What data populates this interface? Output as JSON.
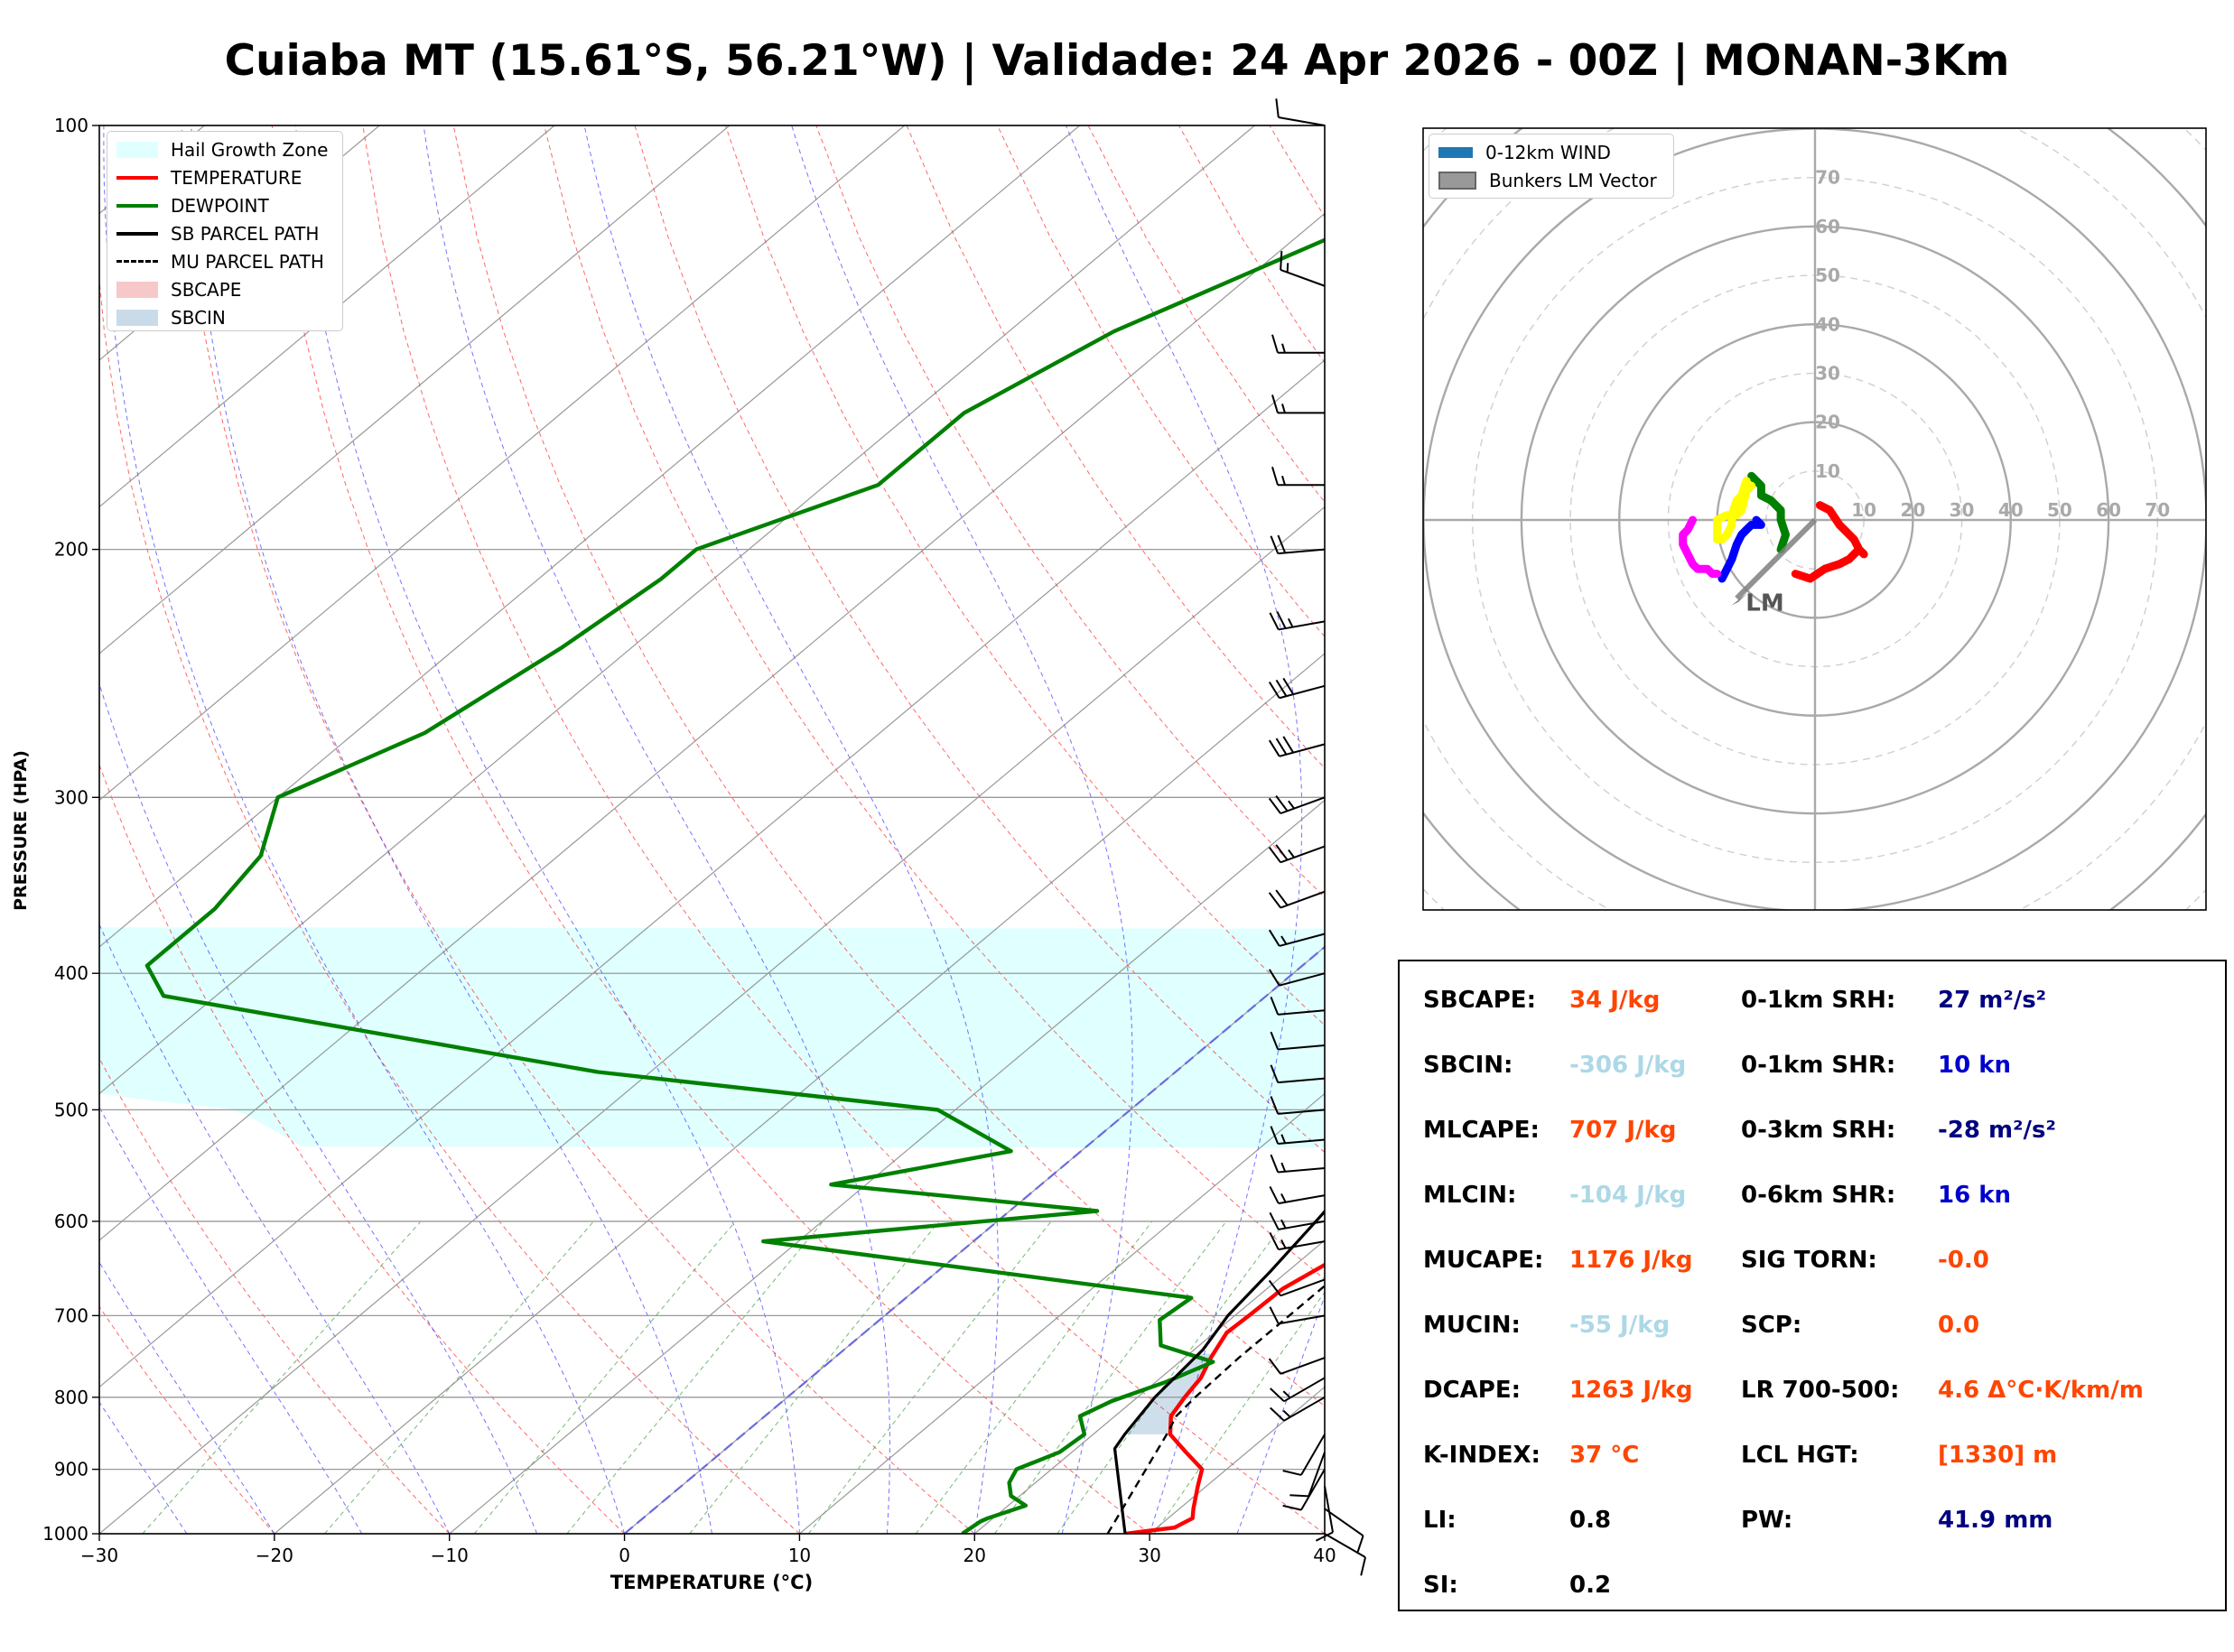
{
  "title": "Cuiaba MT (15.61°S, 56.21°W) | Validade: 24 Apr 2026 - 00Z | MONAN-3Km",
  "skewt": {
    "xlabel": "TEMPERATURE (°C)",
    "ylabel": "PRESSURE (HPA)",
    "x_ticks": [
      "−30",
      "−20",
      "−10",
      "0",
      "10",
      "20",
      "30",
      "40"
    ],
    "y_ticks": [
      "100",
      "200",
      "300",
      "400",
      "500",
      "600",
      "700",
      "800",
      "900",
      "1000"
    ],
    "legend": [
      {
        "label": "Hail Growth Zone",
        "color": "#e0ffff",
        "style": "fill"
      },
      {
        "label": "TEMPERATURE",
        "color": "#ff0000",
        "style": "line"
      },
      {
        "label": "DEWPOINT",
        "color": "#008000",
        "style": "line"
      },
      {
        "label": "SB PARCEL PATH",
        "color": "#000000",
        "style": "line"
      },
      {
        "label": "MU PARCEL PATH",
        "color": "#000000",
        "style": "dash"
      },
      {
        "label": "SBCAPE",
        "color": "#f6c8c8",
        "style": "fill"
      },
      {
        "label": "SBCIN",
        "color": "#c9dbe9",
        "style": "fill"
      }
    ]
  },
  "hodograph": {
    "legend": [
      {
        "label": "0-12km WIND",
        "color": "#1f77b4"
      },
      {
        "label": "Bunkers LM Vector",
        "color": "#999999"
      }
    ],
    "ring_labels": [
      "10",
      "20",
      "30",
      "40",
      "50",
      "60",
      "70"
    ],
    "lm_label": "LM"
  },
  "params": {
    "left": [
      {
        "label": "SBCAPE:",
        "value": "34 J/kg",
        "color": "#ff4500"
      },
      {
        "label": "SBCIN:",
        "value": "-306 J/kg",
        "color": "#add8e6"
      },
      {
        "label": "MLCAPE:",
        "value": "707 J/kg",
        "color": "#ff4500"
      },
      {
        "label": "MLCIN:",
        "value": "-104 J/kg",
        "color": "#add8e6"
      },
      {
        "label": "MUCAPE:",
        "value": "1176 J/kg",
        "color": "#ff4500"
      },
      {
        "label": "MUCIN:",
        "value": "-55 J/kg",
        "color": "#add8e6"
      },
      {
        "label": "DCAPE:",
        "value": "1263 J/kg",
        "color": "#ff4500"
      },
      {
        "label": "K-INDEX:",
        "value": "37 °C",
        "color": "#ff4500"
      },
      {
        "label": "LI:",
        "value": "0.8",
        "color": "#000000"
      },
      {
        "label": "SI:",
        "value": "0.2",
        "color": "#000000"
      }
    ],
    "right": [
      {
        "label": "0-1km SRH:",
        "value": "27 m²/s²",
        "color": "#000080"
      },
      {
        "label": "0-1km SHR:",
        "value": "10 kn",
        "color": "#0000cd"
      },
      {
        "label": "0-3km SRH:",
        "value": "-28 m²/s²",
        "color": "#000080"
      },
      {
        "label": "0-6km SHR:",
        "value": "16 kn",
        "color": "#0000cd"
      },
      {
        "label": "SIG TORN:",
        "value": "-0.0",
        "color": "#ff4500"
      },
      {
        "label": "SCP:",
        "value": "0.0",
        "color": "#ff4500"
      },
      {
        "label": "LR 700-500:",
        "value": "4.6 Δ°C·K/km/m",
        "color": "#ff4500"
      },
      {
        "label": "LCL HGT:",
        "value": "[1330] m",
        "color": "#ff4500"
      },
      {
        "label": "PW:",
        "value": "41.9 mm",
        "color": "#000080"
      }
    ]
  },
  "chart_data": [
    {
      "type": "line",
      "xlabel": "TEMPERATURE (°C)",
      "ylabel": "PRESSURE (HPA)",
      "xlim": [
        -30,
        40
      ],
      "ylim": [
        1000,
        100
      ],
      "yscale": "log",
      "skew_deg_per_decade": 96,
      "grid": true,
      "legend_position": "top-left",
      "series": [
        {
          "name": "TEMPERATURE",
          "color": "#ff0000",
          "points": [
            [
              1000,
              28.6
            ],
            [
              990,
              31
            ],
            [
              975,
              31.4
            ],
            [
              960,
              30.8
            ],
            [
              925,
              29.5
            ],
            [
              900,
              28.6
            ],
            [
              875,
              26.5
            ],
            [
              850,
              24.4
            ],
            [
              825,
              23.2
            ],
            [
              800,
              22.7
            ],
            [
              775,
              22.3
            ],
            [
              750,
              21.5
            ],
            [
              720,
              20.7
            ],
            [
              700,
              20.8
            ],
            [
              670,
              20.9
            ],
            [
              640,
              21.8
            ],
            [
              600,
              21.5
            ],
            [
              565,
              21
            ],
            [
              535,
              19.8
            ],
            [
              505,
              18.4
            ],
            [
              470,
              16.8
            ],
            [
              440,
              15.4
            ],
            [
              405,
              13.6
            ],
            [
              370,
              11.9
            ],
            [
              335,
              9.3
            ],
            [
              300,
              6.4
            ],
            [
              260,
              2.7
            ],
            [
              230,
              -0.3
            ],
            [
              200,
              -3.9
            ],
            [
              180,
              -6.2
            ],
            [
              160,
              -8.2
            ],
            [
              145,
              -9.4
            ],
            [
              130,
              -10.9
            ],
            [
              120,
              -11.7
            ],
            [
              100,
              -14.2
            ]
          ]
        },
        {
          "name": "DEWPOINT",
          "color": "#008000",
          "points": [
            [
              1000,
              19.3
            ],
            [
              980,
              19.5
            ],
            [
              975,
              19.7
            ],
            [
              955,
              21
            ],
            [
              940,
              19.5
            ],
            [
              920,
              18.5
            ],
            [
              900,
              18
            ],
            [
              875,
              19.3
            ],
            [
              850,
              19.5
            ],
            [
              825,
              18
            ],
            [
              805,
              18.8
            ],
            [
              780,
              20.6
            ],
            [
              755,
              21.9
            ],
            [
              735,
              17.8
            ],
            [
              705,
              16
            ],
            [
              680,
              16.3
            ],
            [
              620,
              -12
            ],
            [
              590,
              5
            ],
            [
              565,
              -12
            ],
            [
              535,
              -4
            ],
            [
              500,
              -11
            ],
            [
              470,
              -33
            ],
            [
              415,
              -63
            ],
            [
              395,
              -66
            ],
            [
              360,
              -66
            ],
            [
              330,
              -67
            ],
            [
              300,
              -70
            ],
            [
              270,
              -66
            ],
            [
              235,
              -64
            ],
            [
              210,
              -63
            ],
            [
              200,
              -63
            ],
            [
              180,
              -57
            ],
            [
              160,
              -57
            ],
            [
              140,
              -54
            ],
            [
              120,
              -48
            ],
            [
              100,
              -41
            ]
          ]
        },
        {
          "name": "SB PARCEL PATH",
          "color": "#000000",
          "points": [
            [
              1000,
              28.6
            ],
            [
              870,
              22.2
            ],
            [
              850,
              21.8
            ],
            [
              800,
              21
            ],
            [
              740,
              20.5
            ],
            [
              700,
              19.6
            ],
            [
              650,
              19
            ],
            [
              600,
              18.2
            ],
            [
              550,
              17.3
            ],
            [
              500,
              16.2
            ],
            [
              450,
              15
            ],
            [
              400,
              13.4
            ],
            [
              350,
              11.4
            ],
            [
              300,
              8.3
            ],
            [
              250,
              4.4
            ],
            [
              200,
              -1.2
            ],
            [
              150,
              -7.8
            ],
            [
              120,
              -12.6
            ],
            [
              100,
              -16.1
            ]
          ]
        },
        {
          "name": "MU PARCEL PATH",
          "color": "#000000",
          "points": [
            [
              1000,
              27.6
            ],
            [
              850,
              24.2
            ],
            [
              825,
              23.5
            ],
            [
              800,
              23.3
            ],
            [
              750,
              23.1
            ],
            [
              700,
              23.1
            ],
            [
              650,
              23.1
            ],
            [
              600,
              23.1
            ],
            [
              550,
              22.8
            ],
            [
              500,
              22.2
            ],
            [
              450,
              21.1
            ],
            [
              400,
              19.6
            ],
            [
              350,
              17.1
            ],
            [
              300,
              13.7
            ],
            [
              250,
              9.3
            ],
            [
              200,
              3.2
            ],
            [
              150,
              -4.6
            ],
            [
              120,
              -9.5
            ],
            [
              100,
              -13
            ]
          ]
        }
      ],
      "hail_growth_zone_hpa": [
        371,
        532
      ],
      "wind_barbs": [
        {
          "p": 1000,
          "dir": 120,
          "spd": 10
        },
        {
          "p": 960,
          "dir": 125,
          "spd": 10
        },
        {
          "p": 925,
          "dir": 170,
          "spd": 10
        },
        {
          "p": 900,
          "dir": 210,
          "spd": 10
        },
        {
          "p": 875,
          "dir": 200,
          "spd": 10
        },
        {
          "p": 850,
          "dir": 210,
          "spd": 10
        },
        {
          "p": 800,
          "dir": 240,
          "spd": 15
        },
        {
          "p": 775,
          "dir": 240,
          "spd": 15
        },
        {
          "p": 750,
          "dir": 250,
          "spd": 10
        },
        {
          "p": 700,
          "dir": 260,
          "spd": 10
        },
        {
          "p": 660,
          "dir": 250,
          "spd": 10
        },
        {
          "p": 620,
          "dir": 260,
          "spd": 15
        },
        {
          "p": 600,
          "dir": 260,
          "spd": 15
        },
        {
          "p": 575,
          "dir": 260,
          "spd": 15
        },
        {
          "p": 550,
          "dir": 265,
          "spd": 15
        },
        {
          "p": 525,
          "dir": 265,
          "spd": 15
        },
        {
          "p": 500,
          "dir": 265,
          "spd": 10
        },
        {
          "p": 475,
          "dir": 265,
          "spd": 10
        },
        {
          "p": 450,
          "dir": 265,
          "spd": 10
        },
        {
          "p": 425,
          "dir": 265,
          "spd": 10
        },
        {
          "p": 400,
          "dir": 255,
          "spd": 10
        },
        {
          "p": 375,
          "dir": 255,
          "spd": 15
        },
        {
          "p": 350,
          "dir": 250,
          "spd": 20
        },
        {
          "p": 325,
          "dir": 250,
          "spd": 25
        },
        {
          "p": 300,
          "dir": 250,
          "spd": 25
        },
        {
          "p": 275,
          "dir": 255,
          "spd": 30
        },
        {
          "p": 250,
          "dir": 255,
          "spd": 30
        },
        {
          "p": 225,
          "dir": 260,
          "spd": 25
        },
        {
          "p": 200,
          "dir": 265,
          "spd": 20
        },
        {
          "p": 180,
          "dir": 270,
          "spd": 15
        },
        {
          "p": 160,
          "dir": 270,
          "spd": 15
        },
        {
          "p": 145,
          "dir": 270,
          "spd": 15
        },
        {
          "p": 130,
          "dir": 290,
          "spd": 15
        },
        {
          "p": 100,
          "dir": 280,
          "spd": 10
        }
      ]
    },
    {
      "type": "line",
      "title": "hodograph",
      "range": [
        -80,
        80
      ],
      "rings": [
        10,
        20,
        30,
        40,
        50,
        60,
        70
      ],
      "bunkers_lm": {
        "u": -16,
        "v": -16
      },
      "series": [
        {
          "color": "#ff0000",
          "points": [
            [
              -4,
              -11
            ],
            [
              -1,
              -12
            ],
            [
              2,
              -10
            ],
            [
              5,
              -9
            ],
            [
              7,
              -8
            ],
            [
              8,
              -7
            ],
            [
              9,
              -6
            ],
            [
              10,
              -7
            ],
            [
              9,
              -6
            ],
            [
              8,
              -4
            ],
            [
              6,
              -2
            ],
            [
              5,
              -1
            ],
            [
              3,
              2
            ],
            [
              1,
              3
            ]
          ]
        },
        {
          "color": "#008000",
          "points": [
            [
              -7,
              -6
            ],
            [
              -6,
              -3
            ],
            [
              -7,
              0
            ],
            [
              -7,
              2
            ],
            [
              -9,
              4
            ],
            [
              -11,
              5
            ],
            [
              -11,
              7
            ],
            [
              -12,
              8
            ],
            [
              -13,
              9
            ]
          ]
        },
        {
          "color": "#ffff00",
          "points": [
            [
              -14,
              8
            ],
            [
              -15,
              5
            ],
            [
              -16,
              4
            ],
            [
              -17,
              1
            ],
            [
              -17,
              -1
            ],
            [
              -18,
              -3
            ],
            [
              -19,
              -4
            ],
            [
              -20,
              -4
            ],
            [
              -20,
              -2
            ],
            [
              -20,
              0
            ],
            [
              -18,
              1
            ],
            [
              -16,
              1
            ],
            [
              -15,
              2
            ],
            [
              -14,
              6
            ],
            [
              -13,
              7
            ]
          ]
        },
        {
          "color": "#0000ff",
          "points": [
            [
              -19,
              -12
            ],
            [
              -18,
              -10
            ],
            [
              -17,
              -8
            ],
            [
              -16,
              -5
            ],
            [
              -15,
              -3
            ],
            [
              -14,
              -2
            ],
            [
              -13,
              -1
            ],
            [
              -12,
              -1
            ],
            [
              -11,
              -1
            ],
            [
              -12,
              0
            ]
          ]
        },
        {
          "color": "#ff00ff",
          "points": [
            [
              -25,
              0
            ],
            [
              -26,
              -2
            ],
            [
              -27,
              -3
            ],
            [
              -27,
              -5
            ],
            [
              -26,
              -7
            ],
            [
              -25,
              -9
            ],
            [
              -24,
              -10
            ],
            [
              -22,
              -10
            ],
            [
              -21,
              -11
            ],
            [
              -20,
              -11
            ]
          ]
        }
      ]
    }
  ]
}
